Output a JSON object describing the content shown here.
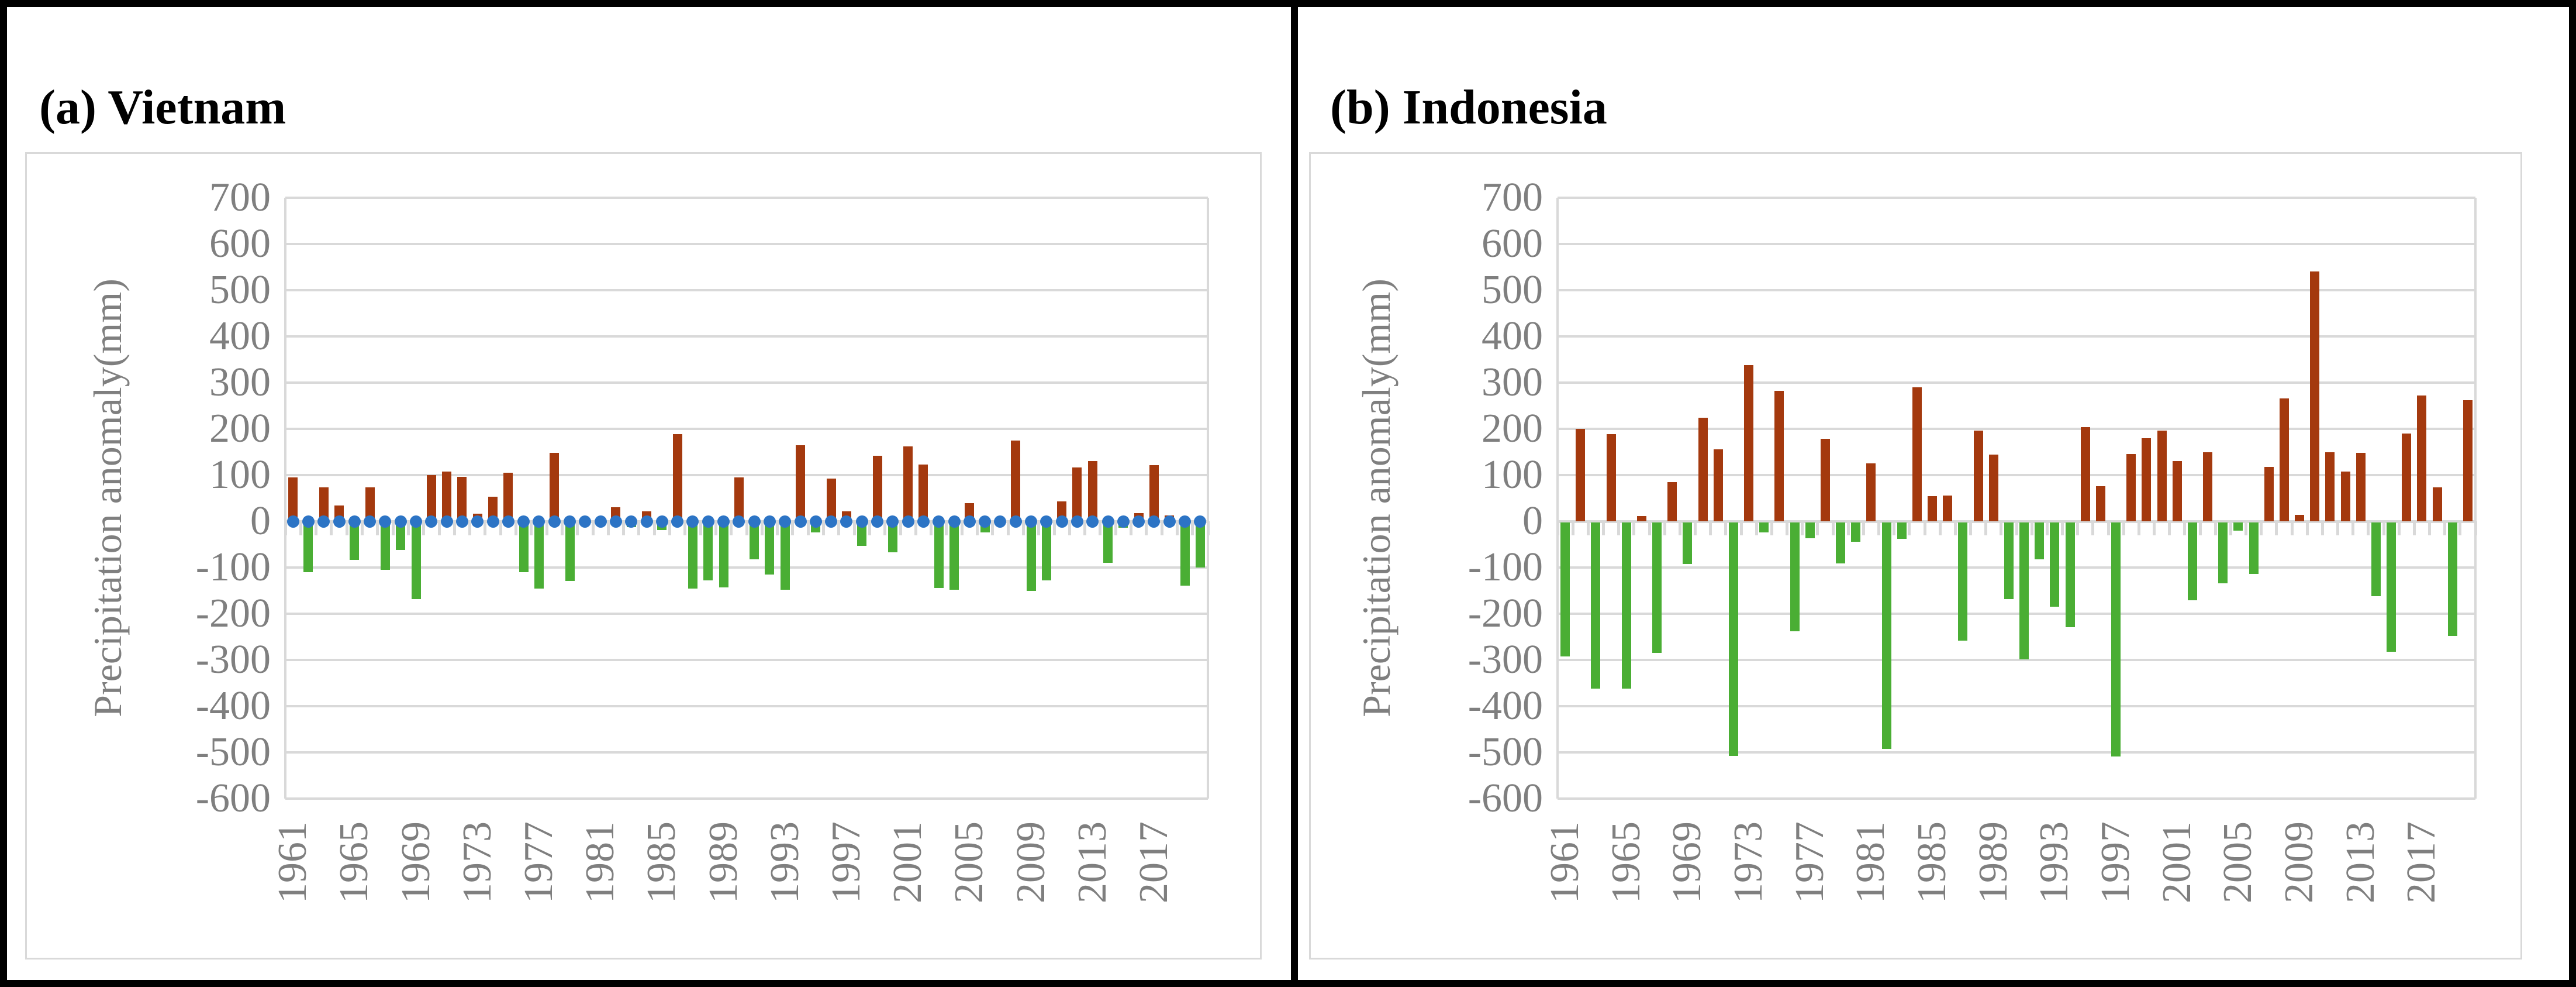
{
  "figure": {
    "panel_a_title": "(a) Vietnam",
    "panel_b_title": "(b) Indonesia",
    "y_axis_title": "Precipitation anomaly(mm)"
  },
  "colors": {
    "positive_bar": "#A4390E",
    "negative_bar": "#4AAE34",
    "zero_dots": "#2C74C5",
    "gridline": "#D9D9D9",
    "axis_text": "#7F7F7F",
    "border": "#000000"
  },
  "chart_data": [
    {
      "type": "bar",
      "title": "(a) Vietnam",
      "xlabel": "",
      "ylabel": "Precipitation anomaly(mm)",
      "ylim": [
        -600,
        700
      ],
      "ytick_labels": [
        "700",
        "600",
        "500",
        "400",
        "300",
        "200",
        "100",
        "0",
        "-100",
        "-200",
        "-300",
        "-400",
        "-500",
        "-600"
      ],
      "yticks": [
        700,
        600,
        500,
        400,
        300,
        200,
        100,
        0,
        -100,
        -200,
        -300,
        -400,
        -500,
        -600
      ],
      "grid": true,
      "legend_position": "none",
      "xtick_labels": [
        "1961",
        "1965",
        "1969",
        "1973",
        "1977",
        "1981",
        "1985",
        "1989",
        "1993",
        "1997",
        "2001",
        "2005",
        "2009",
        "2013",
        "2017"
      ],
      "years": [
        1961,
        1962,
        1963,
        1964,
        1965,
        1966,
        1967,
        1968,
        1969,
        1970,
        1971,
        1972,
        1973,
        1974,
        1975,
        1976,
        1977,
        1978,
        1979,
        1980,
        1981,
        1982,
        1983,
        1984,
        1985,
        1986,
        1987,
        1988,
        1989,
        1990,
        1991,
        1992,
        1993,
        1994,
        1995,
        1996,
        1997,
        1998,
        1999,
        2000,
        2001,
        2002,
        2003,
        2004,
        2005,
        2006,
        2007,
        2008,
        2009,
        2010,
        2011,
        2012,
        2013,
        2014,
        2015,
        2016,
        2017,
        2018,
        2019,
        2020
      ],
      "values": [
        95,
        -108,
        74,
        34,
        -81,
        73,
        -103,
        -60,
        -166,
        100,
        107,
        96,
        16,
        53,
        105,
        -107,
        -143,
        148,
        -127,
        0,
        0,
        30,
        -10,
        21,
        -16,
        188,
        -143,
        -125,
        -141,
        95,
        -80,
        -113,
        -146,
        165,
        -22,
        92,
        22,
        -50,
        142,
        -65,
        162,
        123,
        -142,
        -145,
        39,
        -22,
        0,
        175,
        -148,
        -125,
        43,
        117,
        131,
        -87,
        -12,
        18,
        121,
        13,
        -137,
        -97
      ],
      "zero_dot_series": {
        "present": true,
        "value": 0
      }
    },
    {
      "type": "bar",
      "title": "(b) Indonesia",
      "xlabel": "",
      "ylabel": "Precipitation anomaly(mm)",
      "ylim": [
        -600,
        700
      ],
      "ytick_labels": [
        "700",
        "600",
        "500",
        "400",
        "300",
        "200",
        "100",
        "0",
        "-100",
        "-200",
        "-300",
        "-400",
        "-500",
        "-600"
      ],
      "yticks": [
        700,
        600,
        500,
        400,
        300,
        200,
        100,
        0,
        -100,
        -200,
        -300,
        -400,
        -500,
        -600
      ],
      "grid": true,
      "legend_position": "none",
      "xtick_labels": [
        "1961",
        "1965",
        "1969",
        "1973",
        "1977",
        "1981",
        "1985",
        "1989",
        "1993",
        "1997",
        "2001",
        "2005",
        "2009",
        "2013",
        "2017"
      ],
      "years": [
        1961,
        1962,
        1963,
        1964,
        1965,
        1966,
        1967,
        1968,
        1969,
        1970,
        1971,
        1972,
        1973,
        1974,
        1975,
        1976,
        1977,
        1978,
        1979,
        1980,
        1981,
        1982,
        1983,
        1984,
        1985,
        1986,
        1987,
        1988,
        1989,
        1990,
        1991,
        1992,
        1993,
        1994,
        1995,
        1996,
        1997,
        1998,
        1999,
        2000,
        2001,
        2002,
        2003,
        2004,
        2005,
        2006,
        2007,
        2008,
        2009,
        2010,
        2011,
        2012,
        2013,
        2014,
        2015,
        2016,
        2017,
        2018,
        2019,
        2020
      ],
      "values": [
        -290,
        200,
        -360,
        188,
        -360,
        12,
        -282,
        85,
        -90,
        224,
        156,
        -505,
        338,
        -22,
        282,
        -236,
        -34,
        178,
        -88,
        -42,
        125,
        -490,
        -36,
        290,
        54,
        56,
        -256,
        196,
        144,
        -166,
        -296,
        -80,
        -182,
        -226,
        204,
        76,
        -506,
        146,
        180,
        196,
        130,
        -168,
        150,
        -132,
        -18,
        -112,
        118,
        266,
        14,
        540,
        150,
        108,
        148,
        -160,
        -280,
        190,
        272,
        74,
        -246,
        262
      ],
      "zero_dot_series": {
        "present": false,
        "value": 0
      }
    }
  ]
}
